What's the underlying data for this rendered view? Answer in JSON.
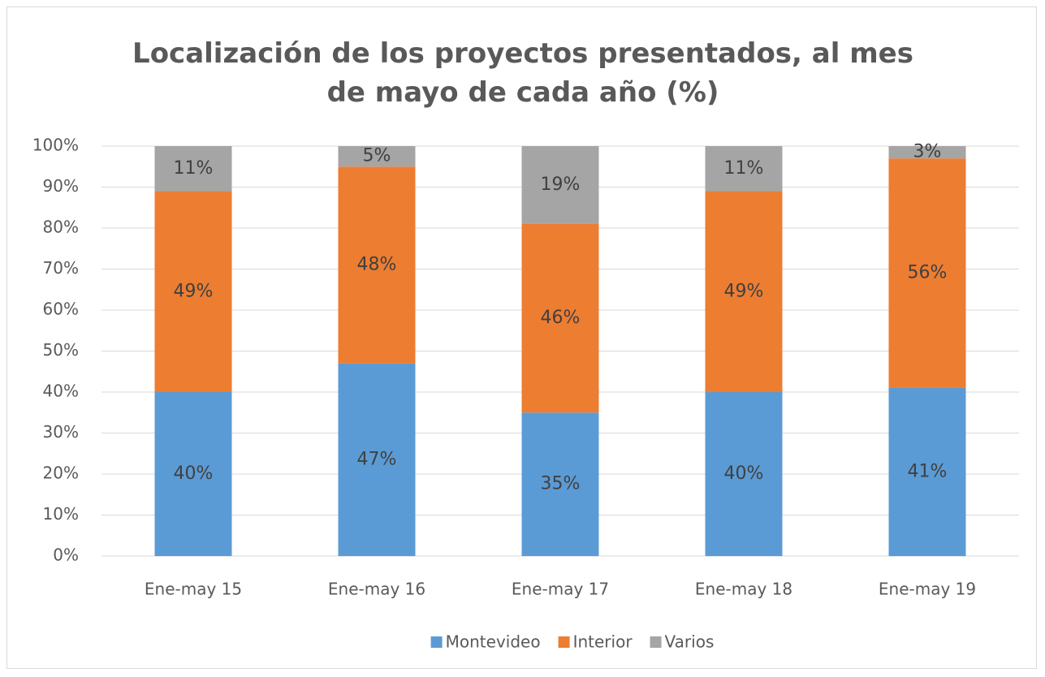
{
  "chart_data": {
    "type": "stacked_bar",
    "title": "Localización de los proyectos presentados, al mes de mayo de cada año (%)",
    "categories": [
      "Ene-may 15",
      "Ene-may 16",
      "Ene-may 17",
      "Ene-may 18",
      "Ene-may 19"
    ],
    "series": [
      {
        "name": "Montevideo",
        "color": "#5b9bd5",
        "values": [
          40,
          47,
          35,
          40,
          41
        ],
        "value_labels": [
          "40%",
          "47%",
          "35%",
          "40%",
          "41%"
        ]
      },
      {
        "name": "Interior",
        "color": "#ed7d31",
        "values": [
          49,
          48,
          46,
          49,
          56
        ],
        "value_labels": [
          "49%",
          "48%",
          "46%",
          "49%",
          "56%"
        ]
      },
      {
        "name": "Varios",
        "color": "#a5a5a5",
        "values": [
          11,
          5,
          19,
          11,
          3
        ],
        "value_labels": [
          "11%",
          "5%",
          "19%",
          "11%",
          "3%"
        ]
      }
    ],
    "ylim": [
      0,
      100
    ],
    "yticks": [
      {
        "value": 0,
        "label": "0%"
      },
      {
        "value": 10,
        "label": "10%"
      },
      {
        "value": 20,
        "label": "20%"
      },
      {
        "value": 30,
        "label": "30%"
      },
      {
        "value": 40,
        "label": "40%"
      },
      {
        "value": 50,
        "label": "50%"
      },
      {
        "value": 60,
        "label": "60%"
      },
      {
        "value": 70,
        "label": "70%"
      },
      {
        "value": 80,
        "label": "80%"
      },
      {
        "value": 90,
        "label": "90%"
      },
      {
        "value": 100,
        "label": "100%"
      }
    ],
    "grid": true,
    "legend": "bottom"
  }
}
